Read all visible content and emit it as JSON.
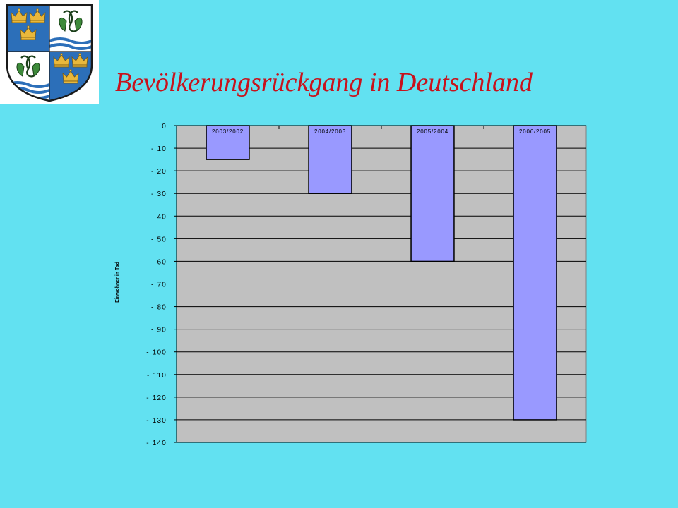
{
  "slide": {
    "title": "Bevölkerungsrückgang in Deutschland",
    "background": "#62e1f1",
    "title_color": "#c8121c"
  },
  "logo": {
    "icon": "coat-of-arms-icon",
    "colors": {
      "field_blue": "#2c6fb9",
      "field_white": "#ffffff",
      "crown": "#e9b83c",
      "linden_leaf": "#3d8a3a",
      "outline": "#1a1a1a"
    }
  },
  "chart_data": {
    "type": "bar",
    "categories": [
      "2003/2002",
      "2004/2003",
      "2005/2004",
      "2006/2005"
    ],
    "values": [
      -15,
      -30,
      -60,
      -130
    ],
    "ylabel": "Einwohner in Tsd",
    "ylim": [
      -140,
      0
    ],
    "yticks": [
      0,
      -10,
      -20,
      -30,
      -40,
      -50,
      -60,
      -70,
      -80,
      -90,
      -100,
      -110,
      -120,
      -130,
      -140
    ],
    "ytick_labels": [
      "0",
      "- 10",
      "- 20",
      "- 30",
      "- 40",
      "- 50",
      "- 60",
      "- 70",
      "- 80",
      "- 90",
      "- 100",
      "- 110",
      "- 120",
      "- 130",
      "- 140"
    ],
    "grid": true,
    "legend": false,
    "category_labels_position": "top",
    "plot_background": "#c0c0c0",
    "bar_color": "#9999ff",
    "bar_outline": "#000000",
    "gridline_color": "#000000"
  }
}
